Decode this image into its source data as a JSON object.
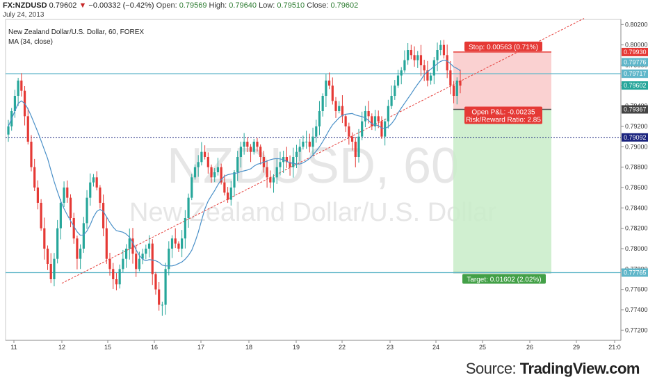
{
  "header": {
    "symbol": "FX:NZDUSD",
    "last": "0.79602",
    "change_arrow": "▼",
    "change": "−0.00332 (−0.42%)",
    "open_label": "Open:",
    "open": "0.79569",
    "high_label": "High:",
    "high": "0.79640",
    "low_label": "Low:",
    "low": "0.79510",
    "close_label": "Close:",
    "close": "0.79602",
    "date": "July 24, 2013"
  },
  "legend": {
    "title": "New Zealand Dollar/U.S. Dollar, 60, FOREX",
    "indicator": "MA (34, close)"
  },
  "watermark": {
    "symbol": "NZDUSD, 60",
    "name": "New Zealand Dollar/U.S. Dollar"
  },
  "position": {
    "stop_label": "Stop: 0.00563 (0.71%)",
    "pnl_label": "Open P&L: -0.00235",
    "rr_label": "Risk/Reward Ratio: 2.85",
    "target_label": "Target: 0.01602 (2.02%)",
    "entry": 0.79367,
    "stop": 0.7993,
    "target": 0.77765
  },
  "price_tags": [
    {
      "value": 0.7993,
      "text": "0.79930",
      "color": "#e53935"
    },
    {
      "value": 0.79776,
      "text": "0.79776",
      "color": "#5fb6c9"
    },
    {
      "value": 0.79717,
      "text": "0.79717",
      "color": "#5fb6c9"
    },
    {
      "value": 0.79602,
      "text": "0.79602",
      "color": "#26a69a"
    },
    {
      "value": 0.79367,
      "text": "0.79367",
      "color": "#444444"
    },
    {
      "value": 0.79092,
      "text": "0.79092",
      "color": "#1a237e"
    },
    {
      "value": 0.77765,
      "text": "0.77765",
      "color": "#5fb6c9"
    }
  ],
  "source": {
    "prefix": "Source: ",
    "brand": "TradingView.com"
  },
  "colors": {
    "up": "#26a69a",
    "down": "#e53935",
    "ma": "#4a90c8",
    "hline": "#5fb6c9",
    "dotted": "#1a237e",
    "trend": "#e53935",
    "stop_zone": "#f9c9c9",
    "target_zone": "#c8ecc8"
  },
  "chart_data": {
    "type": "candlestick",
    "ylim": [
      0.771,
      0.8025
    ],
    "y_ticks": [
      "0.80200",
      "0.80000",
      "0.79800",
      "0.79600",
      "0.79400",
      "0.79200",
      "0.79000",
      "0.78800",
      "0.78600",
      "0.78400",
      "0.78200",
      "0.78000",
      "0.77800",
      "0.77600",
      "0.77400",
      "0.77200"
    ],
    "x_ticks": [
      "11",
      "12",
      "15",
      "16",
      "17",
      "18",
      "19",
      "22",
      "23",
      "24",
      "25",
      "26",
      "29",
      "21:0"
    ],
    "horizontal_lines": [
      0.79717,
      0.77765
    ],
    "dotted_line": 0.79092,
    "trendline": {
      "from": {
        "x": "12",
        "y": 0.7766
      },
      "to": {
        "x": "26",
        "y": 0.8026
      }
    },
    "closes": [
      0.792,
      0.7935,
      0.795,
      0.7965,
      0.7955,
      0.793,
      0.7905,
      0.788,
      0.786,
      0.7845,
      0.782,
      0.78,
      0.7785,
      0.777,
      0.779,
      0.782,
      0.7845,
      0.786,
      0.785,
      0.783,
      0.781,
      0.779,
      0.78,
      0.7825,
      0.785,
      0.7865,
      0.787,
      0.786,
      0.7845,
      0.782,
      0.779,
      0.778,
      0.777,
      0.7765,
      0.778,
      0.779,
      0.78,
      0.781,
      0.7795,
      0.778,
      0.779,
      0.7795,
      0.78,
      0.7805,
      0.7775,
      0.776,
      0.7745,
      0.7745,
      0.778,
      0.78,
      0.781,
      0.7805,
      0.78,
      0.781,
      0.783,
      0.785,
      0.787,
      0.788,
      0.7885,
      0.7895,
      0.789,
      0.788,
      0.787,
      0.7875,
      0.788,
      0.7865,
      0.7855,
      0.7848,
      0.786,
      0.7875,
      0.789,
      0.79,
      0.7905,
      0.79,
      0.7895,
      0.7905,
      0.79,
      0.789,
      0.788,
      0.787,
      0.7865,
      0.787,
      0.788,
      0.7885,
      0.789,
      0.7885,
      0.788,
      0.789,
      0.7895,
      0.79,
      0.7905,
      0.7905,
      0.79,
      0.791,
      0.792,
      0.7935,
      0.795,
      0.7965,
      0.796,
      0.7945,
      0.7935,
      0.794,
      0.793,
      0.792,
      0.791,
      0.7905,
      0.789,
      0.791,
      0.7925,
      0.7935,
      0.793,
      0.792,
      0.793,
      0.7925,
      0.791,
      0.7925,
      0.794,
      0.795,
      0.796,
      0.797,
      0.7975,
      0.7985,
      0.7995,
      0.799,
      0.7985,
      0.799,
      0.798,
      0.7975,
      0.7965,
      0.797,
      0.7985,
      0.7995,
      0.8,
      0.799,
      0.7975,
      0.796,
      0.795,
      0.7965,
      0.796
    ]
  }
}
